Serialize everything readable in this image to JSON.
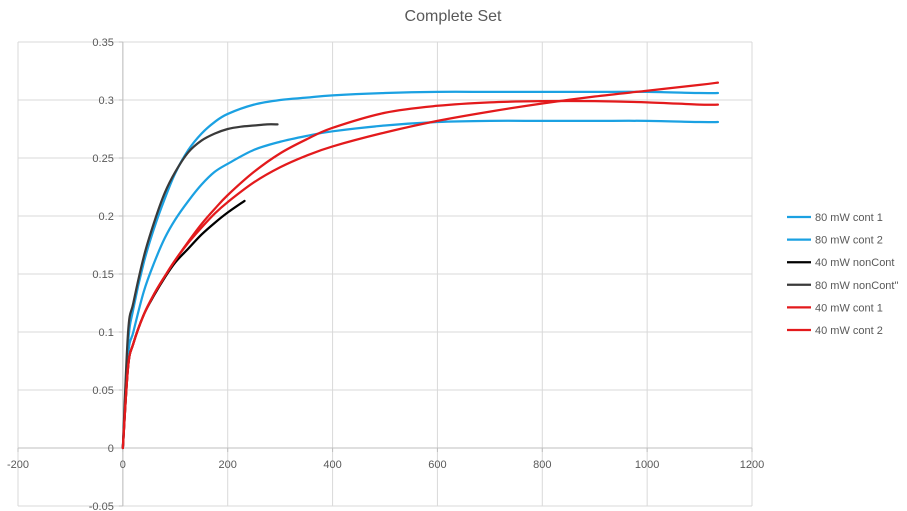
{
  "chart_data": {
    "type": "scatter",
    "title": "Complete Set",
    "xlabel": "",
    "ylabel": "",
    "xlim": [
      -200,
      1200
    ],
    "ylim": [
      -0.05,
      0.35
    ],
    "xticks": [
      -200,
      0,
      200,
      400,
      600,
      800,
      1000,
      1200
    ],
    "yticks": [
      -0.05,
      0,
      0.05,
      0.1,
      0.15,
      0.2,
      0.25,
      0.3,
      0.35
    ],
    "xtick_labels": [
      "-200",
      "0",
      "200",
      "400",
      "600",
      "800",
      "1000",
      "1200"
    ],
    "ytick_labels": [
      "-0.05",
      "0",
      "0.05",
      "0.1",
      "0.15",
      "0.2",
      "0.25",
      "0.3",
      "0.35"
    ],
    "grid": true,
    "legend": "right",
    "series": [
      {
        "name": "80 mW cont 1",
        "color": "#1BA1E2",
        "x": [
          0,
          10,
          20,
          40,
          60,
          80,
          100,
          125,
          150,
          175,
          200,
          250,
          300,
          350,
          400,
          500,
          600,
          700,
          800,
          900,
          1000,
          1100,
          1135
        ],
        "y": [
          0,
          0.09,
          0.12,
          0.16,
          0.19,
          0.215,
          0.237,
          0.257,
          0.271,
          0.281,
          0.288,
          0.296,
          0.3,
          0.302,
          0.304,
          0.306,
          0.307,
          0.307,
          0.307,
          0.307,
          0.307,
          0.306,
          0.306
        ]
      },
      {
        "name": "80 mW cont 2",
        "color": "#1BA1E2",
        "x": [
          0,
          10,
          20,
          40,
          60,
          80,
          100,
          125,
          150,
          175,
          200,
          250,
          300,
          350,
          400,
          500,
          600,
          700,
          800,
          900,
          1000,
          1100,
          1135
        ],
        "y": [
          0,
          0.08,
          0.1,
          0.135,
          0.16,
          0.181,
          0.197,
          0.213,
          0.227,
          0.238,
          0.245,
          0.257,
          0.264,
          0.269,
          0.273,
          0.278,
          0.281,
          0.282,
          0.282,
          0.282,
          0.282,
          0.281,
          0.281
        ]
      },
      {
        "name": "40 mW nonCont",
        "color": "#000000",
        "x": [
          0,
          10,
          20,
          40,
          60,
          80,
          100,
          125,
          150,
          175,
          200,
          232
        ],
        "y": [
          0,
          0.07,
          0.09,
          0.115,
          0.132,
          0.147,
          0.16,
          0.172,
          0.184,
          0.194,
          0.203,
          0.213
        ]
      },
      {
        "name": "80 mW nonCont\"",
        "color": "#3A3A3A",
        "x": [
          0,
          10,
          20,
          40,
          60,
          80,
          100,
          125,
          150,
          175,
          200,
          225,
          250,
          275,
          295
        ],
        "y": [
          0,
          0.1,
          0.125,
          0.165,
          0.195,
          0.22,
          0.238,
          0.255,
          0.265,
          0.271,
          0.275,
          0.277,
          0.278,
          0.279,
          0.279
        ]
      },
      {
        "name": "40 mW cont 1",
        "color": "#E31A1C",
        "x": [
          0,
          10,
          20,
          40,
          60,
          80,
          100,
          125,
          150,
          175,
          200,
          250,
          300,
          350,
          400,
          500,
          600,
          700,
          800,
          900,
          1000,
          1100,
          1135
        ],
        "y": [
          0,
          0.07,
          0.09,
          0.115,
          0.133,
          0.148,
          0.162,
          0.177,
          0.19,
          0.202,
          0.212,
          0.229,
          0.242,
          0.252,
          0.26,
          0.272,
          0.282,
          0.29,
          0.297,
          0.303,
          0.308,
          0.313,
          0.315
        ]
      },
      {
        "name": "40 mW cont 2",
        "color": "#E31A1C",
        "x": [
          0,
          10,
          20,
          40,
          60,
          80,
          100,
          125,
          150,
          175,
          200,
          250,
          300,
          350,
          400,
          500,
          600,
          700,
          800,
          900,
          1000,
          1100,
          1135
        ],
        "y": [
          0,
          0.07,
          0.09,
          0.115,
          0.133,
          0.148,
          0.162,
          0.178,
          0.193,
          0.206,
          0.218,
          0.238,
          0.254,
          0.266,
          0.276,
          0.289,
          0.295,
          0.298,
          0.299,
          0.299,
          0.298,
          0.296,
          0.296
        ]
      }
    ]
  }
}
